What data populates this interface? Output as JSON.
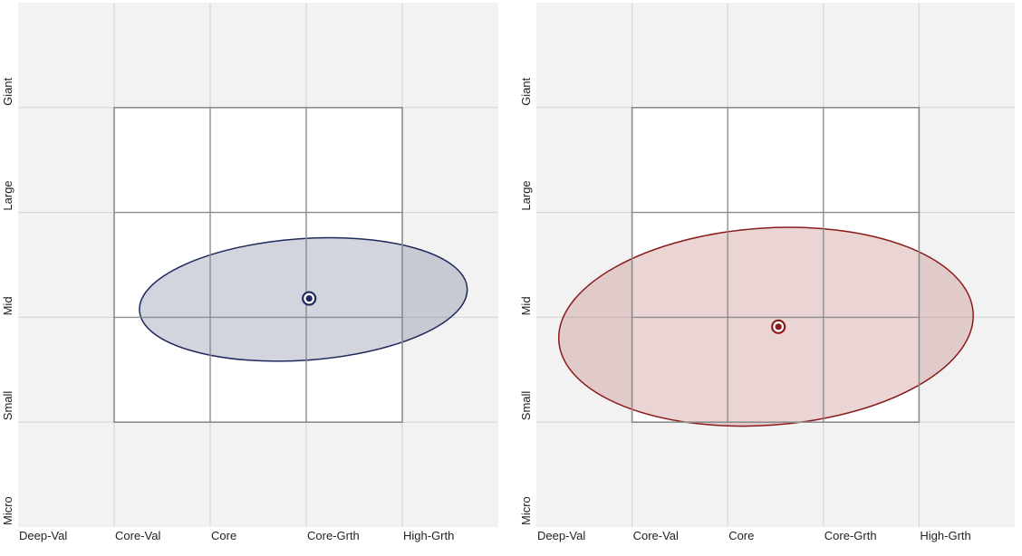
{
  "chart_data": [
    {
      "type": "style-box",
      "x_categories": [
        "Deep-Val",
        "Core-Val",
        "Core",
        "Core-Grth",
        "High-Grth"
      ],
      "y_categories": [
        "Giant",
        "Large",
        "Mid",
        "Small",
        "Micro"
      ],
      "xlim": [
        0,
        5
      ],
      "ylim": [
        0,
        5
      ],
      "style_box": {
        "x": [
          1,
          4
        ],
        "y": [
          1,
          4
        ]
      },
      "centroid": {
        "x": 3.03,
        "y": 2.18
      },
      "zone": {
        "center_x": 2.97,
        "center_y": 2.17,
        "rx": 1.71,
        "ry": 0.58,
        "rotation_deg": -4
      },
      "color": "#1f2a5c",
      "fill": "#1f2a5c",
      "fill_opacity": 0.2
    },
    {
      "type": "style-box",
      "x_categories": [
        "Deep-Val",
        "Core-Val",
        "Core",
        "Core-Grth",
        "High-Grth"
      ],
      "y_categories": [
        "Giant",
        "Large",
        "Mid",
        "Small",
        "Micro"
      ],
      "xlim": [
        0,
        5
      ],
      "ylim": [
        0,
        5
      ],
      "style_box": {
        "x": [
          1,
          4
        ],
        "y": [
          1,
          4
        ]
      },
      "centroid": {
        "x": 2.53,
        "y": 1.91
      },
      "zone": {
        "center_x": 2.4,
        "center_y": 1.91,
        "rx": 2.17,
        "ry": 0.94,
        "rotation_deg": -4
      },
      "color": "#8b1a1a",
      "fill": "#a33a3a",
      "fill_opacity": 0.22
    }
  ],
  "background_color": "#f2f2f2",
  "grid_color": "#d8d8d8",
  "box_border_color": "#8c8c8c"
}
